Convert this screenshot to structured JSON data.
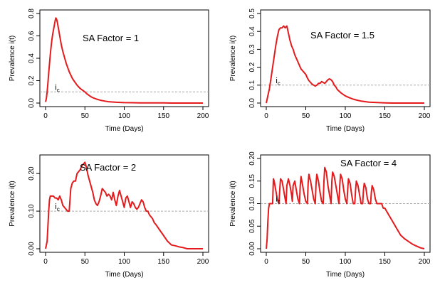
{
  "chart_data": [
    {
      "type": "line",
      "annotation": "SA Factor = 1",
      "threshold_label": "i",
      "threshold_subscript": "c",
      "threshold": 0.1,
      "xlabel": "Time (Days)",
      "ylabel": "Prevalence i(t)",
      "xlim": [
        0,
        200
      ],
      "ylim": [
        0,
        0.8
      ],
      "xticks": [
        0,
        50,
        100,
        150,
        200
      ],
      "yticks": [
        0.0,
        0.2,
        0.4,
        0.6,
        0.8
      ],
      "ytick_labels": [
        "0.0",
        "0.2",
        "0.4",
        "0.6",
        "0.8"
      ],
      "line_color": "#e41a1c",
      "threshold_color": "#aaaaaa",
      "series": [
        {
          "x": [
            0,
            1,
            2,
            3,
            4,
            5,
            6,
            7,
            8,
            9,
            10,
            11,
            12,
            13,
            14,
            15,
            16,
            17,
            18,
            19,
            20,
            22,
            24,
            26,
            28,
            30,
            32,
            34,
            36,
            38,
            40,
            42,
            44,
            46,
            48,
            50,
            52,
            54,
            56,
            58,
            60,
            65,
            70,
            75,
            80,
            90,
            100,
            110,
            120,
            130,
            140,
            150,
            160,
            170,
            180,
            190,
            200
          ],
          "y": [
            0.01,
            0.04,
            0.1,
            0.18,
            0.27,
            0.35,
            0.43,
            0.5,
            0.56,
            0.61,
            0.65,
            0.69,
            0.73,
            0.76,
            0.75,
            0.72,
            0.68,
            0.64,
            0.6,
            0.56,
            0.52,
            0.46,
            0.41,
            0.36,
            0.32,
            0.28,
            0.25,
            0.22,
            0.2,
            0.18,
            0.16,
            0.145,
            0.13,
            0.12,
            0.11,
            0.1,
            0.085,
            0.075,
            0.065,
            0.055,
            0.048,
            0.035,
            0.025,
            0.018,
            0.012,
            0.007,
            0.004,
            0.003,
            0.002,
            0.001,
            0.001,
            0.001,
            0.0,
            0.0,
            0.0,
            0.0,
            0.0
          ]
        }
      ]
    },
    {
      "type": "line",
      "annotation": "SA Factor = 1.5",
      "threshold_label": "i",
      "threshold_subscript": "c",
      "threshold": 0.1,
      "xlabel": "Time (Days)",
      "ylabel": "Prevalence i(t)",
      "xlim": [
        0,
        200
      ],
      "ylim": [
        0,
        0.5
      ],
      "xticks": [
        0,
        50,
        100,
        150,
        200
      ],
      "yticks": [
        0.0,
        0.1,
        0.2,
        0.3,
        0.4,
        0.5
      ],
      "ytick_labels": [
        "0.0",
        "0.1",
        "0.2",
        "0.3",
        "0.4",
        "0.5"
      ],
      "line_color": "#e41a1c",
      "threshold_color": "#aaaaaa",
      "series": [
        {
          "x": [
            0,
            2,
            4,
            6,
            8,
            10,
            12,
            14,
            16,
            18,
            20,
            22,
            24,
            26,
            27,
            28,
            30,
            32,
            34,
            36,
            38,
            40,
            42,
            44,
            46,
            48,
            50,
            52,
            54,
            56,
            58,
            60,
            62,
            64,
            66,
            68,
            70,
            72,
            74,
            76,
            78,
            80,
            82,
            84,
            86,
            88,
            90,
            95,
            100,
            105,
            110,
            115,
            120,
            125,
            130,
            140,
            150,
            160,
            170,
            180,
            190,
            200
          ],
          "y": [
            0.0,
            0.04,
            0.08,
            0.14,
            0.2,
            0.26,
            0.32,
            0.37,
            0.41,
            0.42,
            0.42,
            0.43,
            0.42,
            0.43,
            0.41,
            0.39,
            0.35,
            0.32,
            0.3,
            0.27,
            0.25,
            0.23,
            0.21,
            0.19,
            0.18,
            0.17,
            0.16,
            0.14,
            0.125,
            0.115,
            0.105,
            0.1,
            0.095,
            0.1,
            0.11,
            0.11,
            0.12,
            0.115,
            0.11,
            0.12,
            0.13,
            0.135,
            0.13,
            0.12,
            0.1,
            0.09,
            0.075,
            0.055,
            0.04,
            0.03,
            0.022,
            0.016,
            0.011,
            0.008,
            0.005,
            0.003,
            0.001,
            0.0,
            0.0,
            0.0,
            0.0,
            0.0
          ]
        }
      ]
    },
    {
      "type": "line",
      "annotation": "SA Factor  = 2",
      "threshold_label": "i",
      "threshold_subscript": "c",
      "threshold": 0.1,
      "xlabel": "Time (Days)",
      "ylabel": "Prevalence i(t)",
      "xlim": [
        0,
        200
      ],
      "ylim": [
        0,
        0.24
      ],
      "xticks": [
        0,
        50,
        100,
        150,
        200
      ],
      "yticks": [
        0.0,
        0.1,
        0.2
      ],
      "ytick_labels": [
        "0.00",
        "0.10",
        "0.20"
      ],
      "line_color": "#e41a1c",
      "threshold_color": "#aaaaaa",
      "series": [
        {
          "x": [
            0,
            2,
            4,
            5,
            6,
            8,
            10,
            12,
            14,
            16,
            18,
            20,
            22,
            24,
            26,
            28,
            30,
            31,
            32,
            34,
            36,
            38,
            40,
            42,
            44,
            46,
            48,
            50,
            52,
            54,
            56,
            58,
            60,
            62,
            64,
            66,
            68,
            70,
            72,
            74,
            76,
            78,
            80,
            82,
            84,
            86,
            88,
            90,
            92,
            94,
            96,
            98,
            100,
            102,
            104,
            106,
            108,
            110,
            112,
            114,
            116,
            118,
            120,
            122,
            124,
            126,
            128,
            130,
            132,
            134,
            136,
            138,
            140,
            145,
            150,
            155,
            160,
            165,
            170,
            175,
            180,
            190,
            200
          ],
          "y": [
            0.0,
            0.02,
            0.1,
            0.13,
            0.14,
            0.14,
            0.14,
            0.135,
            0.135,
            0.13,
            0.14,
            0.13,
            0.115,
            0.11,
            0.105,
            0.1,
            0.1,
            0.13,
            0.16,
            0.175,
            0.18,
            0.18,
            0.2,
            0.205,
            0.21,
            0.22,
            0.225,
            0.23,
            0.215,
            0.195,
            0.18,
            0.165,
            0.15,
            0.13,
            0.12,
            0.115,
            0.125,
            0.14,
            0.16,
            0.155,
            0.15,
            0.14,
            0.145,
            0.14,
            0.13,
            0.15,
            0.13,
            0.115,
            0.14,
            0.155,
            0.14,
            0.125,
            0.11,
            0.135,
            0.14,
            0.125,
            0.11,
            0.125,
            0.12,
            0.11,
            0.105,
            0.11,
            0.12,
            0.13,
            0.125,
            0.11,
            0.1,
            0.1,
            0.09,
            0.085,
            0.08,
            0.07,
            0.065,
            0.05,
            0.035,
            0.02,
            0.01,
            0.008,
            0.005,
            0.003,
            0.0,
            0.0,
            0.0
          ]
        }
      ]
    },
    {
      "type": "line",
      "annotation": "SA Factor = 4",
      "threshold_label": "i",
      "threshold_subscript": "c",
      "threshold": 0.1,
      "xlabel": "Time (Days)",
      "ylabel": "Prevalence i(t)",
      "xlim": [
        0,
        200
      ],
      "ylim": [
        0,
        0.2
      ],
      "xticks": [
        0,
        50,
        100,
        150,
        200
      ],
      "yticks": [
        0.0,
        0.05,
        0.1,
        0.15,
        0.2
      ],
      "ytick_labels": [
        "0.00",
        "0.05",
        "0.10",
        "0.15",
        "0.20"
      ],
      "line_color": "#e41a1c",
      "threshold_color": "#aaaaaa",
      "series": [
        {
          "x": [
            0,
            1,
            2,
            3,
            4,
            5,
            6,
            7,
            8,
            9,
            10,
            12,
            14,
            16,
            17,
            18,
            20,
            22,
            24,
            25,
            26,
            28,
            30,
            32,
            33,
            34,
            36,
            38,
            40,
            42,
            43,
            44,
            46,
            48,
            50,
            52,
            53,
            54,
            56,
            58,
            60,
            62,
            63,
            64,
            66,
            68,
            70,
            72,
            73,
            74,
            76,
            78,
            80,
            82,
            83,
            84,
            86,
            88,
            90,
            92,
            93,
            94,
            96,
            98,
            100,
            102,
            103,
            104,
            106,
            108,
            110,
            112,
            113,
            114,
            116,
            118,
            120,
            122,
            123,
            124,
            126,
            128,
            130,
            132,
            133,
            134,
            136,
            138,
            140,
            142,
            144,
            146,
            148,
            150,
            155,
            160,
            165,
            170,
            175,
            180,
            185,
            190,
            195,
            200
          ],
          "y": [
            0.0,
            0.02,
            0.06,
            0.09,
            0.1,
            0.1,
            0.1,
            0.1,
            0.1,
            0.155,
            0.15,
            0.13,
            0.11,
            0.1,
            0.13,
            0.155,
            0.15,
            0.13,
            0.11,
            0.1,
            0.14,
            0.155,
            0.14,
            0.12,
            0.105,
            0.14,
            0.15,
            0.13,
            0.11,
            0.1,
            0.14,
            0.16,
            0.14,
            0.12,
            0.105,
            0.1,
            0.145,
            0.165,
            0.15,
            0.13,
            0.11,
            0.1,
            0.145,
            0.165,
            0.15,
            0.125,
            0.105,
            0.1,
            0.15,
            0.18,
            0.17,
            0.14,
            0.12,
            0.1,
            0.15,
            0.17,
            0.16,
            0.14,
            0.12,
            0.1,
            0.14,
            0.165,
            0.155,
            0.13,
            0.11,
            0.1,
            0.13,
            0.155,
            0.145,
            0.12,
            0.1,
            0.1,
            0.13,
            0.15,
            0.14,
            0.12,
            0.1,
            0.1,
            0.13,
            0.145,
            0.135,
            0.11,
            0.1,
            0.1,
            0.125,
            0.14,
            0.13,
            0.11,
            0.1,
            0.1,
            0.1,
            0.1,
            0.09,
            0.09,
            0.075,
            0.06,
            0.045,
            0.03,
            0.022,
            0.016,
            0.01,
            0.006,
            0.002,
            0.0
          ]
        }
      ]
    }
  ]
}
